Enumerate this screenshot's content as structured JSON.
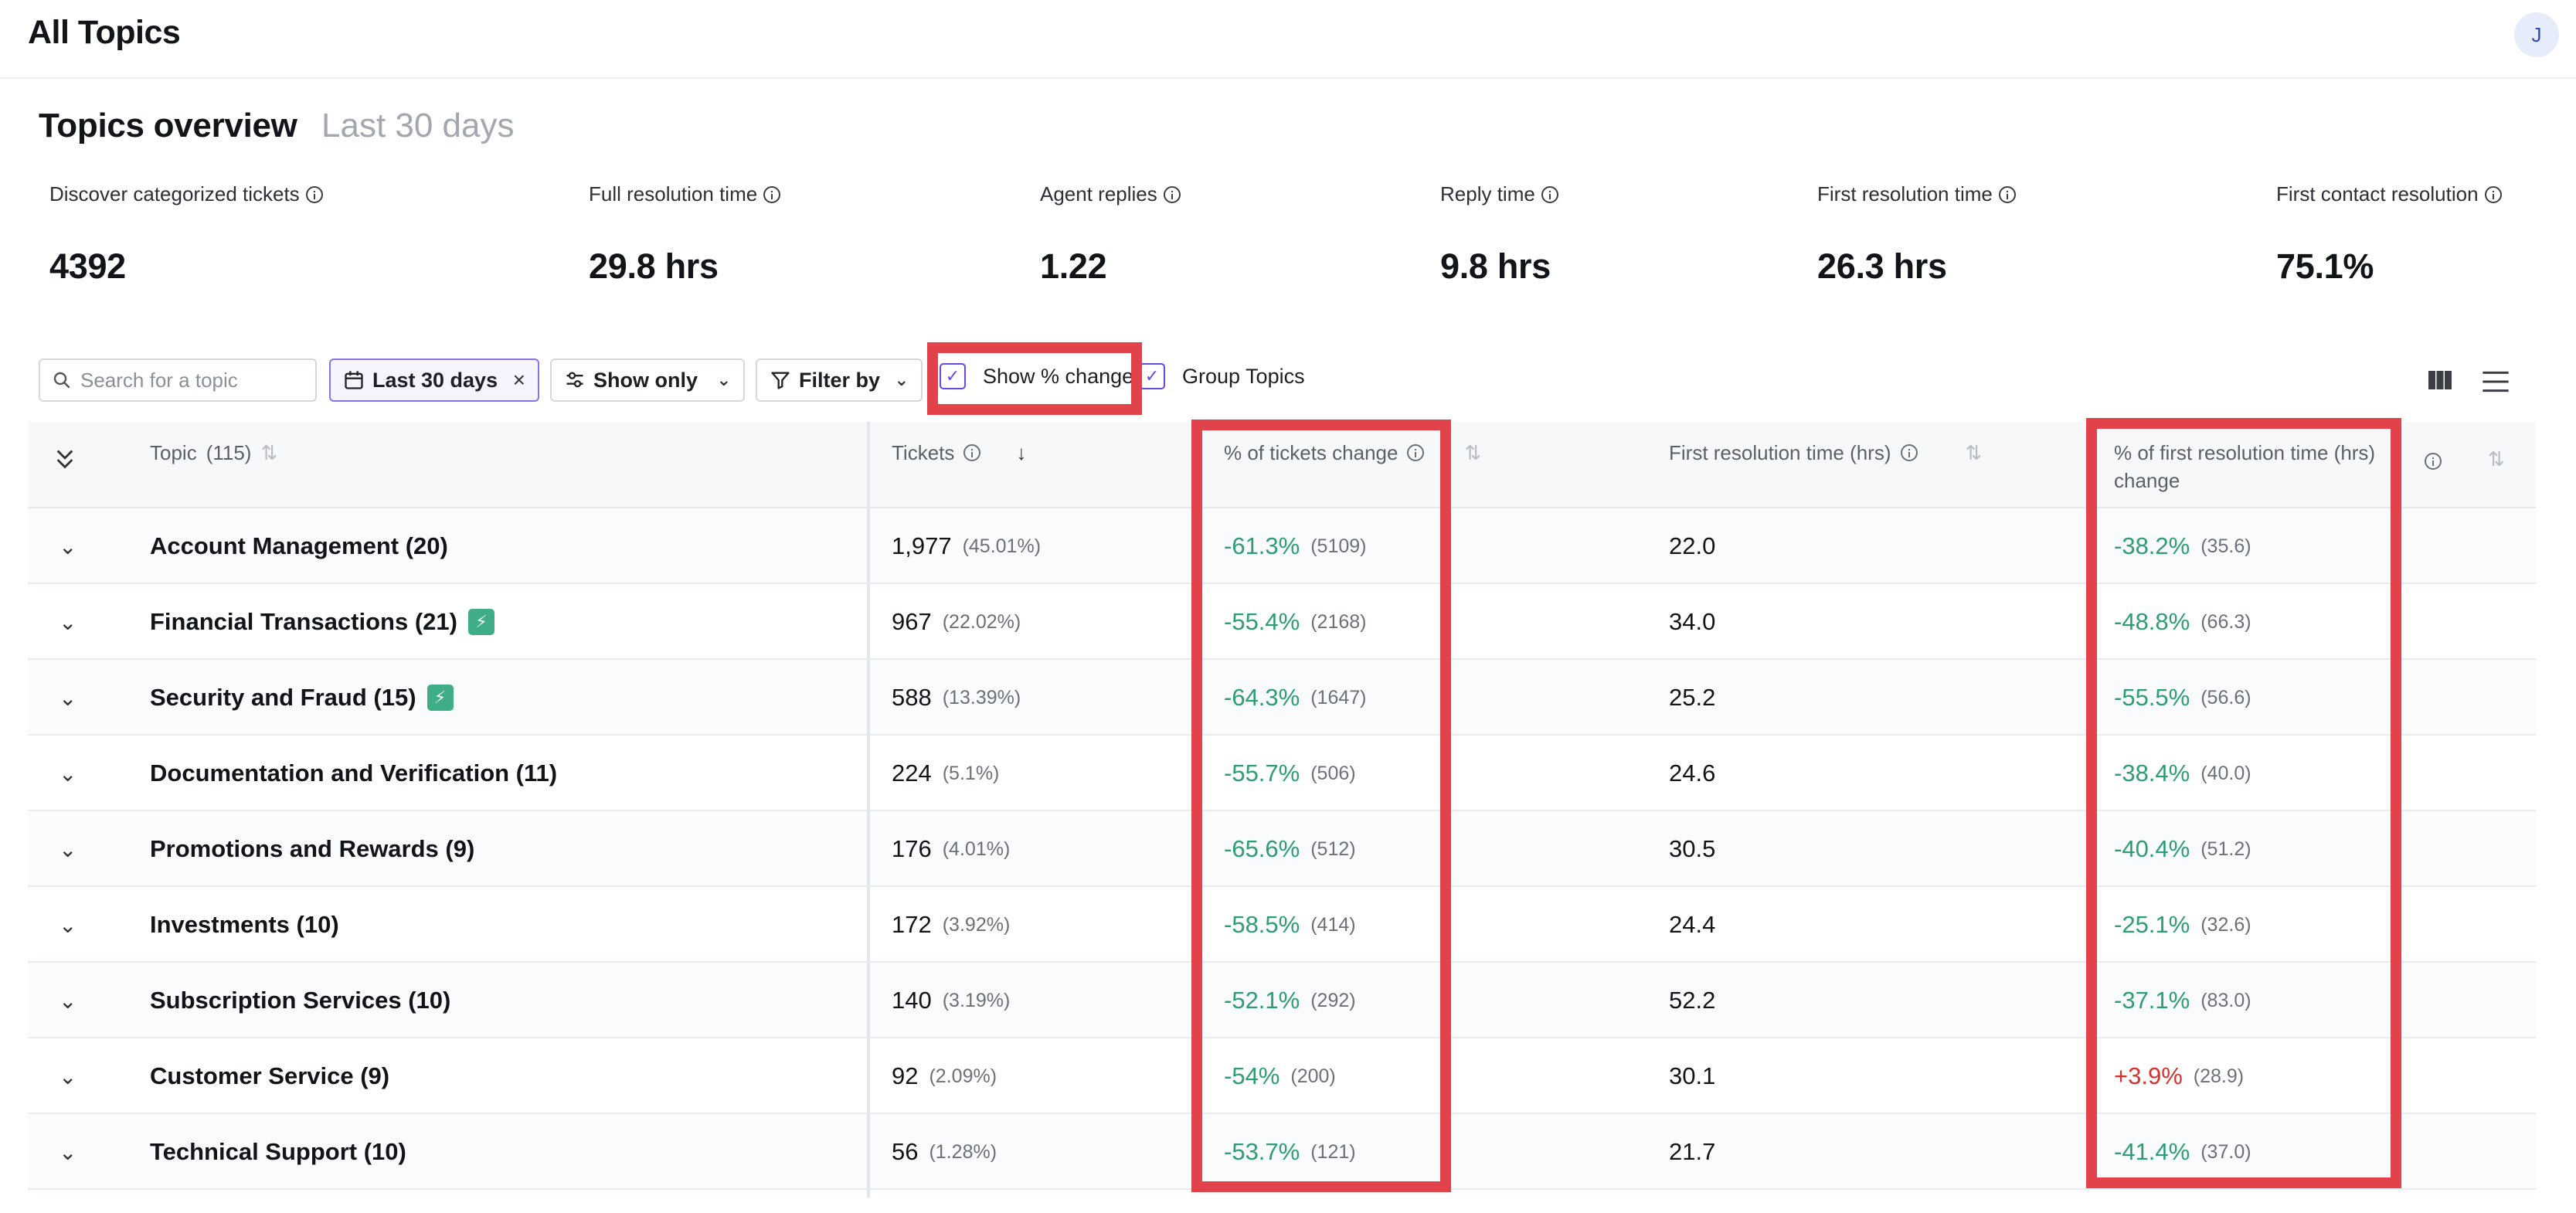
{
  "app": {
    "title": "All Topics",
    "avatar_initial": "J"
  },
  "overview": {
    "title": "Topics overview",
    "range": "Last 30 days"
  },
  "metrics": [
    {
      "label": "Discover categorized tickets",
      "value": "4392"
    },
    {
      "label": "Full resolution time",
      "value": "29.8 hrs"
    },
    {
      "label": "Agent replies",
      "value": "1.22"
    },
    {
      "label": "Reply time",
      "value": "9.8 hrs"
    },
    {
      "label": "First resolution time",
      "value": "26.3 hrs"
    },
    {
      "label": "First contact resolution",
      "value": "75.1%"
    }
  ],
  "toolbar": {
    "search_placeholder": "Search for a topic",
    "date_chip": "Last 30 days",
    "show_only": "Show only",
    "filter_by": "Filter by",
    "show_change": "Show % change",
    "group_topics": "Group Topics",
    "show_change_checked": true,
    "group_topics_checked": true
  },
  "table": {
    "headers": {
      "topic": "Topic",
      "topic_count": "(115)",
      "tickets": "Tickets",
      "tickets_change": "% of tickets change",
      "frt": "First resolution time (hrs)",
      "frt_change_line1": "% of first resolution time (hrs)",
      "frt_change_line2": "change"
    },
    "rows": [
      {
        "topic": "Account Management (20)",
        "bolt": false,
        "tickets": "1,977",
        "tickets_pct": "(45.01%)",
        "tchange": "-61.3%",
        "tchange_prev": "(5109)",
        "frt": "22.0",
        "fchange": "-38.2%",
        "fchange_prev": "(35.6)",
        "fchange_dir": "neg"
      },
      {
        "topic": "Financial Transactions (21)",
        "bolt": true,
        "tickets": "967",
        "tickets_pct": "(22.02%)",
        "tchange": "-55.4%",
        "tchange_prev": "(2168)",
        "frt": "34.0",
        "fchange": "-48.8%",
        "fchange_prev": "(66.3)",
        "fchange_dir": "neg"
      },
      {
        "topic": "Security and Fraud (15)",
        "bolt": true,
        "tickets": "588",
        "tickets_pct": "(13.39%)",
        "tchange": "-64.3%",
        "tchange_prev": "(1647)",
        "frt": "25.2",
        "fchange": "-55.5%",
        "fchange_prev": "(56.6)",
        "fchange_dir": "neg"
      },
      {
        "topic": "Documentation and Verification (11)",
        "bolt": false,
        "tickets": "224",
        "tickets_pct": "(5.1%)",
        "tchange": "-55.7%",
        "tchange_prev": "(506)",
        "frt": "24.6",
        "fchange": "-38.4%",
        "fchange_prev": "(40.0)",
        "fchange_dir": "neg"
      },
      {
        "topic": "Promotions and Rewards (9)",
        "bolt": false,
        "tickets": "176",
        "tickets_pct": "(4.01%)",
        "tchange": "-65.6%",
        "tchange_prev": "(512)",
        "frt": "30.5",
        "fchange": "-40.4%",
        "fchange_prev": "(51.2)",
        "fchange_dir": "neg"
      },
      {
        "topic": "Investments (10)",
        "bolt": false,
        "tickets": "172",
        "tickets_pct": "(3.92%)",
        "tchange": "-58.5%",
        "tchange_prev": "(414)",
        "frt": "24.4",
        "fchange": "-25.1%",
        "fchange_prev": "(32.6)",
        "fchange_dir": "neg"
      },
      {
        "topic": "Subscription Services (10)",
        "bolt": false,
        "tickets": "140",
        "tickets_pct": "(3.19%)",
        "tchange": "-52.1%",
        "tchange_prev": "(292)",
        "frt": "52.2",
        "fchange": "-37.1%",
        "fchange_prev": "(83.0)",
        "fchange_dir": "neg"
      },
      {
        "topic": "Customer Service (9)",
        "bolt": false,
        "tickets": "92",
        "tickets_pct": "(2.09%)",
        "tchange": "-54%",
        "tchange_prev": "(200)",
        "frt": "30.1",
        "fchange": "+3.9%",
        "fchange_prev": "(28.9)",
        "fchange_dir": "pos"
      },
      {
        "topic": "Technical Support (10)",
        "bolt": false,
        "tickets": "56",
        "tickets_pct": "(1.28%)",
        "tchange": "-53.7%",
        "tchange_prev": "(121)",
        "frt": "21.7",
        "fchange": "-41.4%",
        "fchange_prev": "(37.0)",
        "fchange_dir": "neg"
      }
    ]
  },
  "colors": {
    "accent": "#6b46e0",
    "highlight": "#e2434b",
    "negative_change": "#2e9d74",
    "positive_change": "#d6312f"
  }
}
